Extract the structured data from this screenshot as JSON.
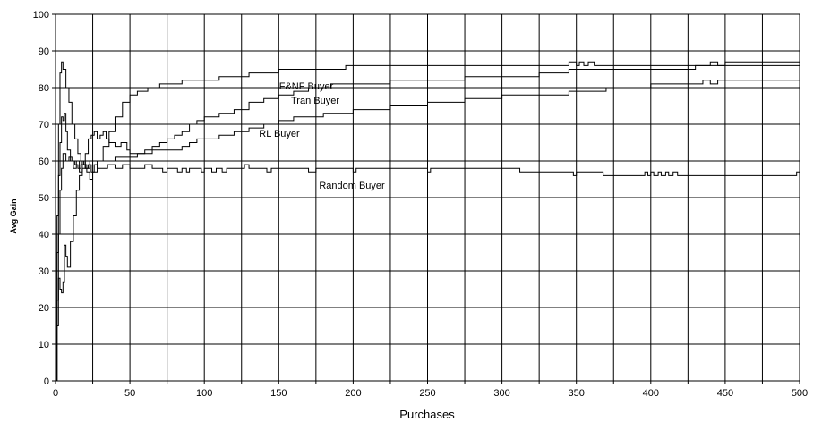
{
  "chart_data": {
    "type": "line",
    "title": "",
    "xlabel": "Purchases",
    "ylabel": "Avg Gain",
    "xlim": [
      0,
      500
    ],
    "ylim": [
      0,
      100
    ],
    "x_ticks": [
      0,
      50,
      100,
      150,
      200,
      250,
      300,
      350,
      400,
      450,
      500
    ],
    "y_ticks": [
      0,
      10,
      20,
      30,
      40,
      50,
      60,
      70,
      80,
      90,
      100
    ],
    "x_minor_step": 25,
    "grid": true,
    "legend": "none (series labelled directly on the plot)",
    "line_color": "#000000",
    "series": [
      {
        "name": "F&NF Buyer",
        "points": [
          [
            0,
            0
          ],
          [
            1,
            35
          ],
          [
            2,
            70
          ],
          [
            3,
            84
          ],
          [
            4,
            87
          ],
          [
            5,
            85
          ],
          [
            7,
            80
          ],
          [
            9,
            76
          ],
          [
            11,
            70
          ],
          [
            13,
            66
          ],
          [
            15,
            62
          ],
          [
            17,
            60
          ],
          [
            19,
            59
          ],
          [
            21,
            57
          ],
          [
            23,
            55
          ],
          [
            25,
            57
          ],
          [
            28,
            60
          ],
          [
            32,
            64
          ],
          [
            36,
            68
          ],
          [
            40,
            72
          ],
          [
            45,
            76
          ],
          [
            50,
            78
          ],
          [
            55,
            79
          ],
          [
            62,
            80
          ],
          [
            68,
            80
          ],
          [
            70,
            81
          ],
          [
            75,
            81
          ],
          [
            82,
            81
          ],
          [
            85,
            82
          ],
          [
            95,
            82
          ],
          [
            110,
            83
          ],
          [
            130,
            84
          ],
          [
            150,
            85
          ],
          [
            175,
            85
          ],
          [
            195,
            86
          ],
          [
            250,
            86
          ],
          [
            300,
            86
          ],
          [
            340,
            86
          ],
          [
            345,
            87
          ],
          [
            350,
            86
          ],
          [
            352,
            87
          ],
          [
            355,
            86
          ],
          [
            358,
            87
          ],
          [
            362,
            86
          ],
          [
            380,
            86
          ],
          [
            420,
            86
          ],
          [
            435,
            86
          ],
          [
            440,
            87
          ],
          [
            445,
            86
          ],
          [
            450,
            87
          ],
          [
            500,
            87
          ]
        ]
      },
      {
        "name": "Tran Buyer",
        "points": [
          [
            0,
            0
          ],
          [
            1,
            15
          ],
          [
            2,
            40
          ],
          [
            3,
            52
          ],
          [
            4,
            58
          ],
          [
            5,
            62
          ],
          [
            7,
            60
          ],
          [
            9,
            61
          ],
          [
            11,
            60
          ],
          [
            13,
            59
          ],
          [
            15,
            58
          ],
          [
            17,
            59
          ],
          [
            20,
            58
          ],
          [
            23,
            60
          ],
          [
            26,
            60
          ],
          [
            30,
            60
          ],
          [
            35,
            60
          ],
          [
            40,
            61
          ],
          [
            45,
            61
          ],
          [
            50,
            61
          ],
          [
            55,
            62
          ],
          [
            60,
            63
          ],
          [
            65,
            64
          ],
          [
            70,
            65
          ],
          [
            75,
            66
          ],
          [
            80,
            67
          ],
          [
            85,
            68
          ],
          [
            90,
            70
          ],
          [
            95,
            71
          ],
          [
            100,
            72
          ],
          [
            110,
            73
          ],
          [
            120,
            74
          ],
          [
            130,
            76
          ],
          [
            140,
            77
          ],
          [
            150,
            78
          ],
          [
            160,
            79
          ],
          [
            170,
            80
          ],
          [
            185,
            81
          ],
          [
            200,
            81
          ],
          [
            225,
            82
          ],
          [
            250,
            82
          ],
          [
            275,
            83
          ],
          [
            300,
            83
          ],
          [
            325,
            84
          ],
          [
            340,
            84
          ],
          [
            345,
            85
          ],
          [
            370,
            85
          ],
          [
            400,
            85
          ],
          [
            430,
            86
          ],
          [
            450,
            86
          ],
          [
            500,
            86
          ]
        ]
      },
      {
        "name": "RL Buyer",
        "points": [
          [
            0,
            0
          ],
          [
            1,
            22
          ],
          [
            2,
            28
          ],
          [
            3,
            25
          ],
          [
            4,
            24
          ],
          [
            5,
            27
          ],
          [
            6,
            37
          ],
          [
            7,
            34
          ],
          [
            8,
            31
          ],
          [
            10,
            38
          ],
          [
            12,
            45
          ],
          [
            14,
            52
          ],
          [
            16,
            56
          ],
          [
            18,
            58
          ],
          [
            20,
            62
          ],
          [
            22,
            66
          ],
          [
            24,
            67
          ],
          [
            26,
            68
          ],
          [
            28,
            66
          ],
          [
            30,
            67
          ],
          [
            32,
            68
          ],
          [
            34,
            66
          ],
          [
            36,
            65
          ],
          [
            40,
            64
          ],
          [
            44,
            65
          ],
          [
            48,
            63
          ],
          [
            50,
            62
          ],
          [
            55,
            62
          ],
          [
            60,
            62
          ],
          [
            65,
            63
          ],
          [
            70,
            63
          ],
          [
            75,
            63
          ],
          [
            80,
            63
          ],
          [
            85,
            64
          ],
          [
            90,
            65
          ],
          [
            95,
            66
          ],
          [
            100,
            66
          ],
          [
            110,
            67
          ],
          [
            120,
            68
          ],
          [
            130,
            69
          ],
          [
            140,
            70
          ],
          [
            150,
            71
          ],
          [
            160,
            72
          ],
          [
            170,
            72
          ],
          [
            180,
            73
          ],
          [
            200,
            74
          ],
          [
            225,
            75
          ],
          [
            250,
            76
          ],
          [
            275,
            77
          ],
          [
            300,
            78
          ],
          [
            325,
            78
          ],
          [
            345,
            79
          ],
          [
            370,
            80
          ],
          [
            400,
            81
          ],
          [
            430,
            81
          ],
          [
            435,
            82
          ],
          [
            440,
            81
          ],
          [
            445,
            82
          ],
          [
            500,
            82
          ]
        ]
      },
      {
        "name": "Random Buyer",
        "points": [
          [
            0,
            0
          ],
          [
            1,
            45
          ],
          [
            2,
            56
          ],
          [
            3,
            65
          ],
          [
            4,
            72
          ],
          [
            5,
            71
          ],
          [
            6,
            73
          ],
          [
            7,
            68
          ],
          [
            8,
            63
          ],
          [
            10,
            60
          ],
          [
            12,
            58
          ],
          [
            14,
            60
          ],
          [
            16,
            57
          ],
          [
            18,
            60
          ],
          [
            20,
            58
          ],
          [
            22,
            59
          ],
          [
            24,
            57
          ],
          [
            26,
            59
          ],
          [
            28,
            58
          ],
          [
            30,
            58
          ],
          [
            35,
            59
          ],
          [
            40,
            58
          ],
          [
            45,
            59
          ],
          [
            50,
            58
          ],
          [
            55,
            58
          ],
          [
            60,
            59
          ],
          [
            65,
            58
          ],
          [
            70,
            58
          ],
          [
            72,
            57
          ],
          [
            75,
            58
          ],
          [
            80,
            58
          ],
          [
            82,
            57
          ],
          [
            85,
            58
          ],
          [
            88,
            57
          ],
          [
            90,
            58
          ],
          [
            95,
            58
          ],
          [
            98,
            57
          ],
          [
            100,
            58
          ],
          [
            105,
            57
          ],
          [
            108,
            58
          ],
          [
            112,
            57
          ],
          [
            115,
            58
          ],
          [
            120,
            58
          ],
          [
            125,
            58
          ],
          [
            127,
            59
          ],
          [
            130,
            58
          ],
          [
            140,
            58
          ],
          [
            142,
            57
          ],
          [
            145,
            58
          ],
          [
            150,
            58
          ],
          [
            165,
            58
          ],
          [
            170,
            57
          ],
          [
            175,
            58
          ],
          [
            195,
            58
          ],
          [
            200,
            57
          ],
          [
            202,
            58
          ],
          [
            230,
            58
          ],
          [
            248,
            58
          ],
          [
            250,
            57
          ],
          [
            252,
            58
          ],
          [
            275,
            58
          ],
          [
            300,
            58
          ],
          [
            310,
            58
          ],
          [
            312,
            57
          ],
          [
            320,
            57
          ],
          [
            340,
            57
          ],
          [
            345,
            57
          ],
          [
            348,
            56
          ],
          [
            350,
            57
          ],
          [
            365,
            57
          ],
          [
            368,
            56
          ],
          [
            380,
            56
          ],
          [
            395,
            56
          ],
          [
            396,
            57
          ],
          [
            398,
            56
          ],
          [
            400,
            57
          ],
          [
            402,
            56
          ],
          [
            405,
            57
          ],
          [
            407,
            56
          ],
          [
            410,
            57
          ],
          [
            412,
            56
          ],
          [
            415,
            57
          ],
          [
            418,
            56
          ],
          [
            420,
            56
          ],
          [
            440,
            56
          ],
          [
            460,
            56
          ],
          [
            480,
            56
          ],
          [
            497,
            56
          ],
          [
            498,
            57
          ],
          [
            500,
            56
          ]
        ]
      }
    ]
  }
}
